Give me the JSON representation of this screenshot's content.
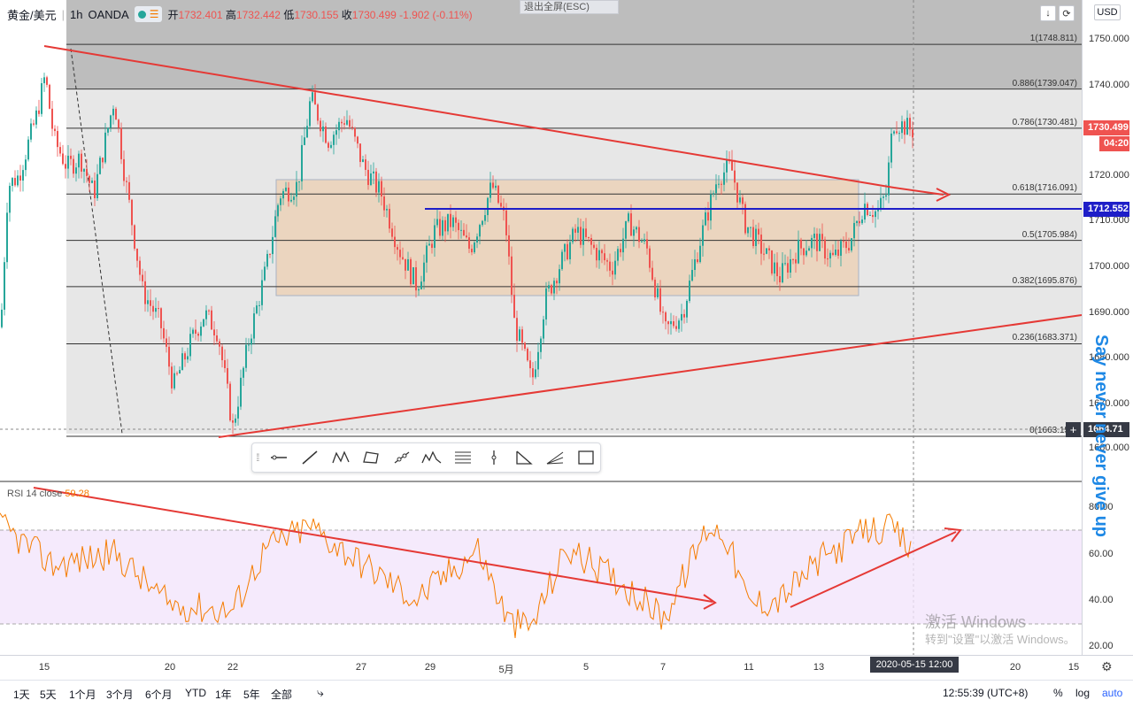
{
  "header": {
    "symbol": "黄金/美元",
    "interval": "1h",
    "broker": "OANDA",
    "open_label": "开",
    "open": "1732.401",
    "high_label": "高",
    "high": "1732.442",
    "low_label": "低",
    "low": "1730.155",
    "close_label": "收",
    "close": "1730.499",
    "change": "-1.902 (-0.11%)",
    "exit_fullscreen": "退出全屏(ESC)",
    "currency": "USD"
  },
  "price_axis": {
    "ticks": [
      "1750.000",
      "1740.000",
      "1730.000",
      "1720.000",
      "1710.000",
      "1700.000",
      "1690.000",
      "1680.000",
      "1670.000",
      "1660.000"
    ],
    "current_price": "1730.499",
    "countdown": "04:20",
    "level_label": "1712.552",
    "cursor_label": "1664.71"
  },
  "fib_levels": [
    {
      "label": "1(1748.811)",
      "price": 1748.811
    },
    {
      "label": "0.886(1739.047)",
      "price": 1739.047
    },
    {
      "label": "0.786(1730.481)",
      "price": 1730.481
    },
    {
      "label": "0.618(1716.091)",
      "price": 1716.091
    },
    {
      "label": "0.5(1705.984)",
      "price": 1705.984
    },
    {
      "label": "0.382(1695.876)",
      "price": 1695.876
    },
    {
      "label": "0.236(1683.371)",
      "price": 1683.371
    },
    {
      "label": "0(1663.150)",
      "price": 1663.15
    }
  ],
  "rsi": {
    "label": "RSI 14 close",
    "value": "59.28",
    "ticks": [
      "80.00",
      "60.00",
      "40.00",
      "20.00"
    ]
  },
  "time_axis": {
    "labels": [
      "15",
      "20",
      "22",
      "27",
      "29",
      "5月",
      "5",
      "7",
      "11",
      "13",
      "20",
      "15"
    ],
    "cursor": "2020-05-15   12:00"
  },
  "bottom_bar": {
    "ranges": [
      "1天",
      "5天",
      "1个月",
      "3个月",
      "6个月",
      "YTD",
      "1年",
      "5年",
      "全部"
    ],
    "clock": "12:55:39 (UTC+8)",
    "percent": "%",
    "log": "log",
    "auto": "auto"
  },
  "watermarks": {
    "side_text": "Say never never give up",
    "activate_title": "激活 Windows",
    "activate_sub": "转到\"设置\"以激活 Windows。"
  },
  "colors": {
    "up": "#26a69a",
    "down": "#ef5350",
    "trendline": "#e53935",
    "level_line": "#1e1ec8",
    "rsi_line": "#f57c00",
    "accent": "#2962ff"
  },
  "drawing_tools": [
    "horizontal-ray-icon",
    "trend-line-icon",
    "xabcd-pattern-icon",
    "polyline-icon",
    "path-icon",
    "elliott-wave-icon",
    "fib-retracement-icon",
    "vertical-line-icon",
    "triangle-pattern-icon",
    "fib-fan-icon",
    "rectangle-icon"
  ]
}
